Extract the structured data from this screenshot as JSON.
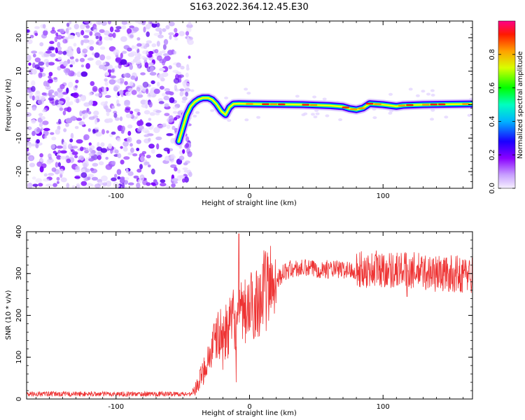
{
  "figure_title": "S163.2022.364.12.45.E30",
  "colors": {
    "snr_line": "#ee3333",
    "colormap": [
      "#f2ecff",
      "#c39cff",
      "#8800ff",
      "#0000ff",
      "#00cfff",
      "#00ff66",
      "#ffff00",
      "#ff8800",
      "#ff0000",
      "#ff0088"
    ]
  },
  "chart_data": [
    {
      "type": "heatmap",
      "name": "spectrogram",
      "xlabel": "Height of straight line (km)",
      "ylabel": "Frequency (Hz)",
      "xlim": [
        -167,
        167
      ],
      "ylim": [
        -25,
        25
      ],
      "xticks": [
        -100,
        0,
        100
      ],
      "yticks": [
        -20,
        -10,
        0,
        10,
        20
      ],
      "colorbar": {
        "label": "Normalized spectral amplitude",
        "range": [
          0,
          1
        ],
        "ticks": [
          "0.0",
          "0.2",
          "0.4",
          "0.6",
          "0.8"
        ]
      },
      "ridge_frequency_hz": [
        [
          -53,
          -11
        ],
        [
          -50,
          -7
        ],
        [
          -47,
          -3
        ],
        [
          -44,
          -0.5
        ],
        [
          -41,
          0.8
        ],
        [
          -38,
          1.6
        ],
        [
          -35,
          2.0
        ],
        [
          -31,
          2.0
        ],
        [
          -28,
          1.5
        ],
        [
          -25,
          0.3
        ],
        [
          -21,
          -2.0
        ],
        [
          -18,
          -3.0
        ],
        [
          -15,
          -0.8
        ],
        [
          -12,
          0.2
        ],
        [
          -8,
          0.3
        ],
        [
          0,
          0.2
        ],
        [
          20,
          0.1
        ],
        [
          40,
          0.0
        ],
        [
          60,
          -0.3
        ],
        [
          70,
          -0.6
        ],
        [
          75,
          -1.2
        ],
        [
          80,
          -1.5
        ],
        [
          85,
          -1.0
        ],
        [
          90,
          0.3
        ],
        [
          100,
          0.0
        ],
        [
          110,
          -0.5
        ],
        [
          115,
          -0.2
        ],
        [
          130,
          0.0
        ],
        [
          166,
          0.2
        ]
      ],
      "noise_region_x": [
        -167,
        -50
      ]
    },
    {
      "type": "line",
      "name": "snr",
      "xlabel": "Height of straight line (km)",
      "ylabel": "SNR (10 * v/v)",
      "xlim": [
        -167,
        167
      ],
      "ylim": [
        0,
        400
      ],
      "xticks": [
        -100,
        0,
        100
      ],
      "yticks": [
        0,
        100,
        200,
        300,
        400
      ],
      "x": [
        -167,
        -140,
        -100,
        -60,
        -45,
        -40,
        -36,
        -32,
        -28,
        -24,
        -20,
        -16,
        -12,
        -8,
        -4,
        0,
        5,
        10,
        15,
        20,
        25,
        30,
        40,
        60,
        80,
        100,
        120,
        140,
        160,
        167
      ],
      "y": [
        12,
        12,
        12,
        12,
        12,
        25,
        55,
        90,
        120,
        150,
        155,
        165,
        190,
        195,
        205,
        215,
        235,
        255,
        270,
        285,
        300,
        310,
        312,
        310,
        308,
        310,
        308,
        300,
        298,
        298
      ],
      "spikes": [
        [
          -8,
          395
        ],
        [
          -10,
          40
        ],
        [
          -20,
          70
        ],
        [
          95,
          355
        ],
        [
          118,
          245
        ]
      ]
    }
  ]
}
